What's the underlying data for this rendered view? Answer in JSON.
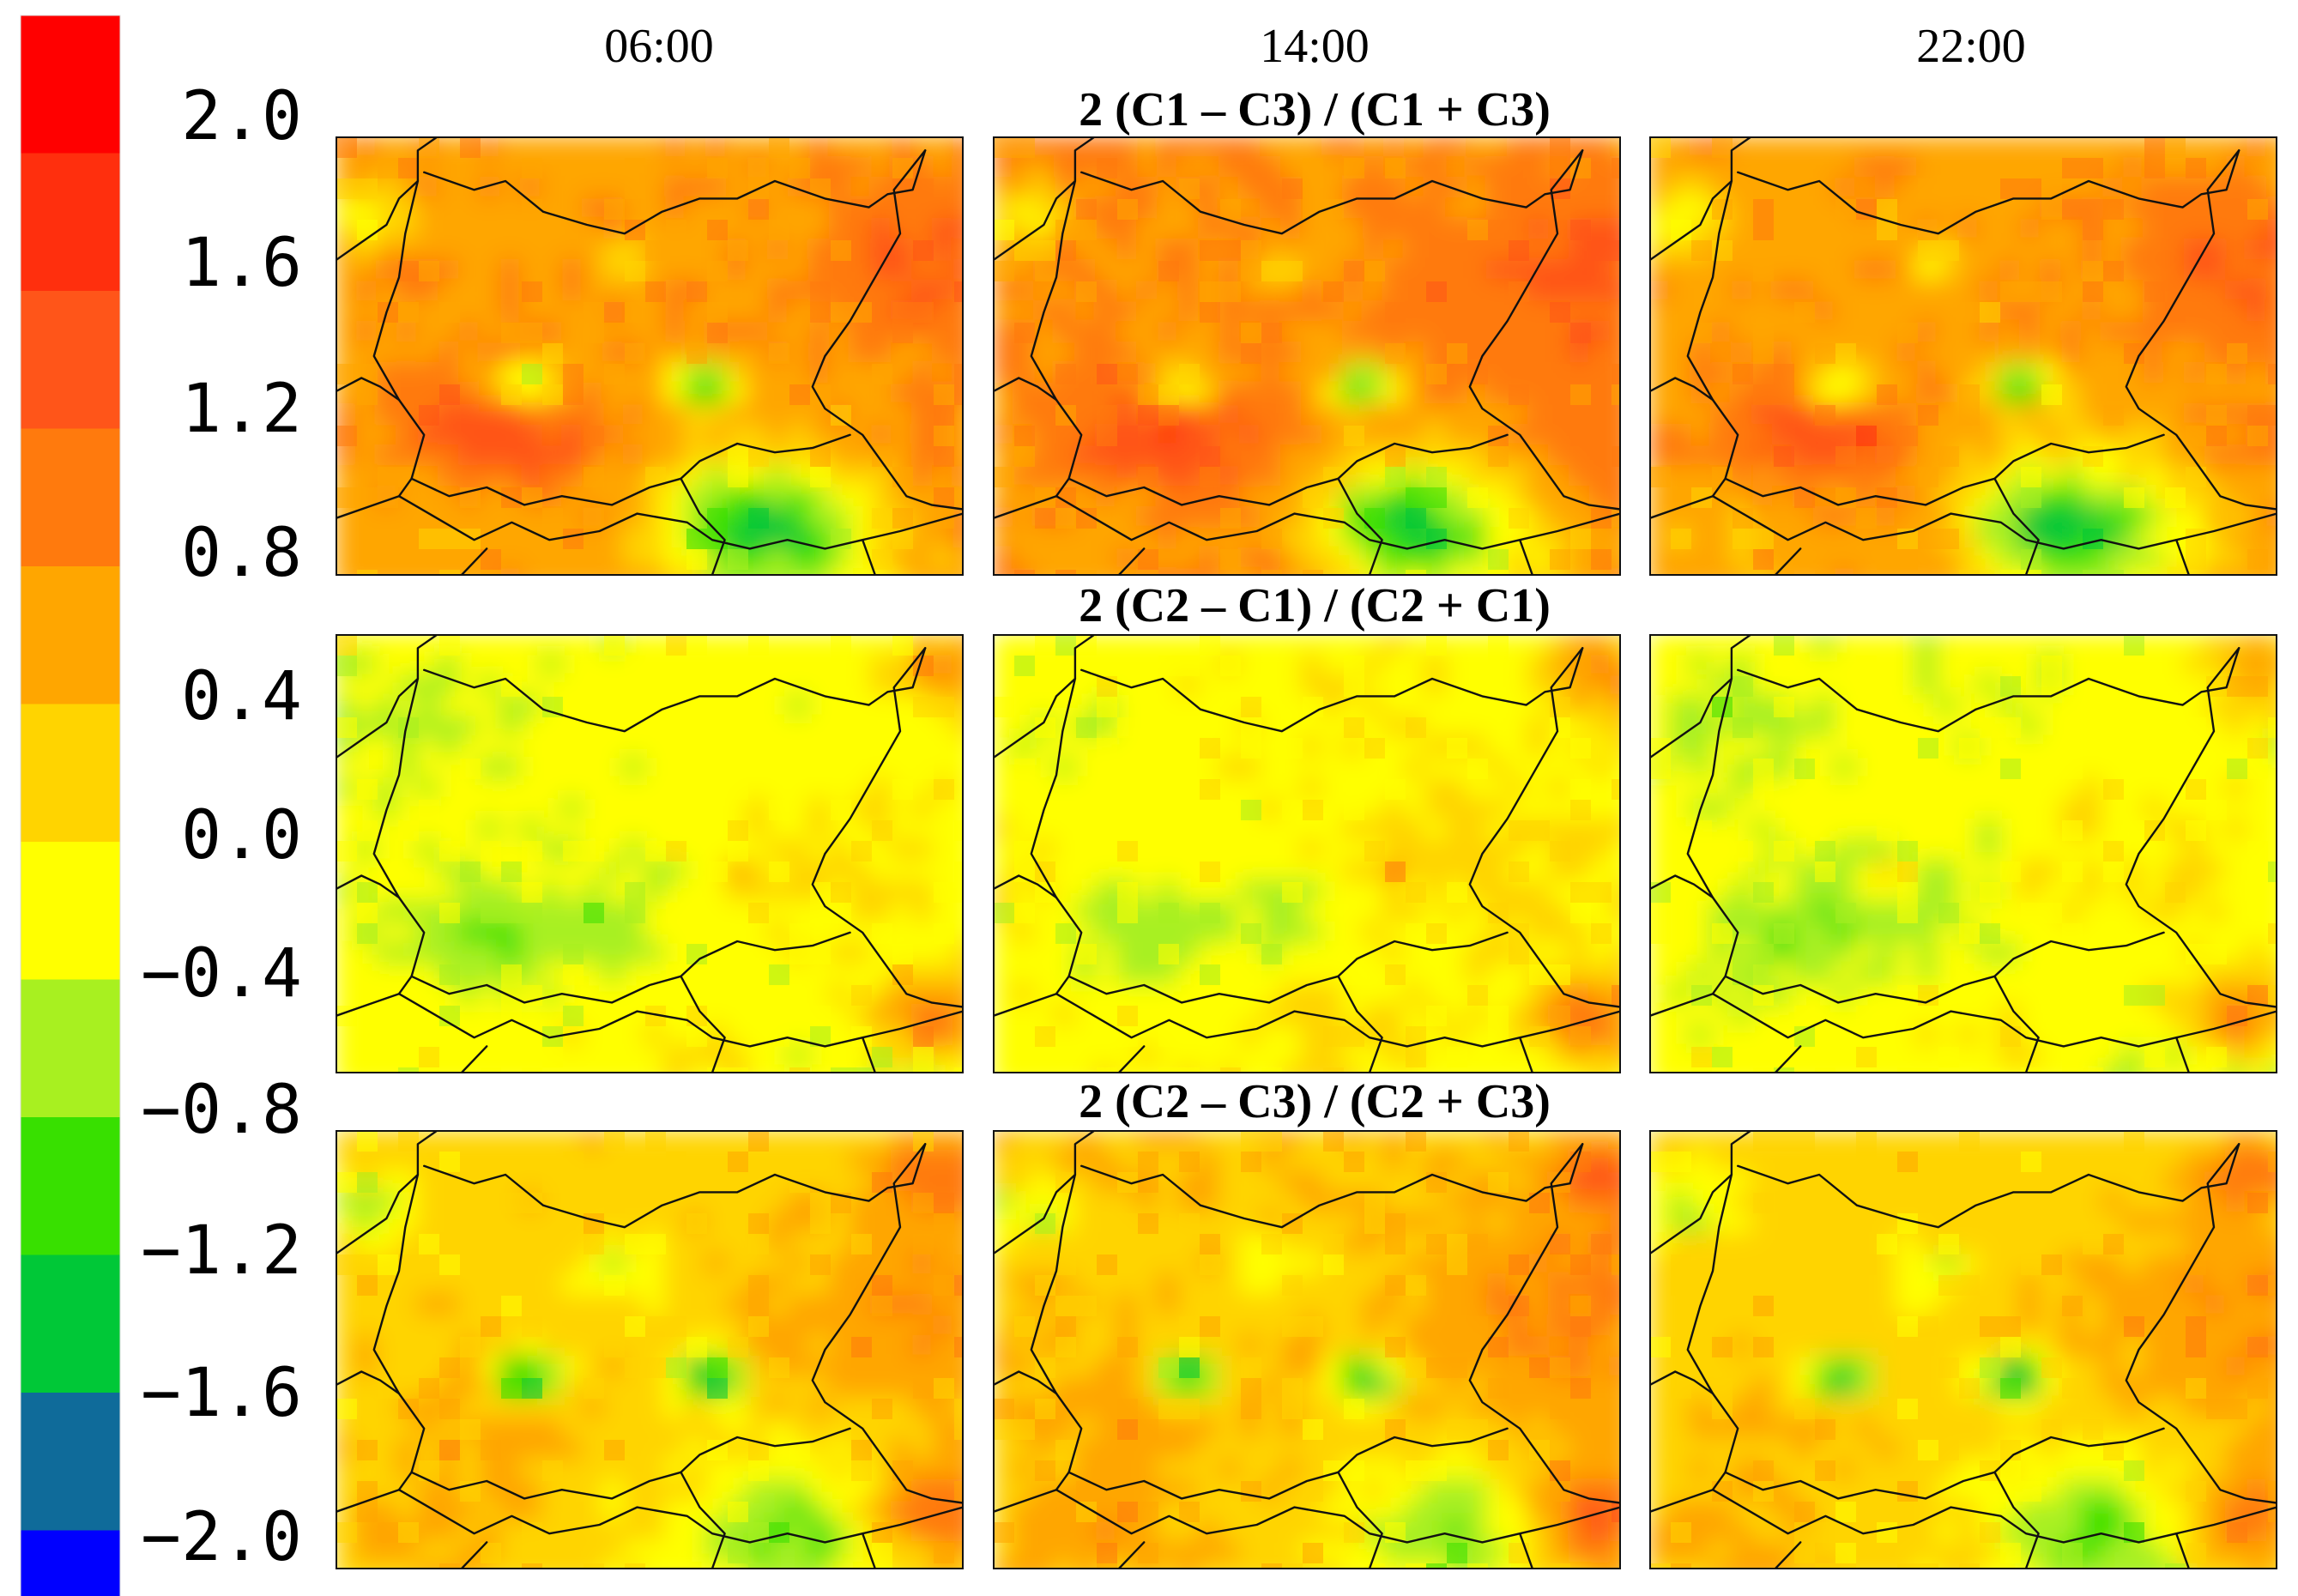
{
  "columns": [
    "06:00",
    "14:00",
    "22:00"
  ],
  "rows": [
    "2 (C1 – C3) / (C1 + C3)",
    "2 (C2 – C1) / (C2 + C1)",
    "2 (C2 – C3) / (C2 + C3)"
  ],
  "colorbar": {
    "bands": [
      "#ff0000",
      "#ff2f0d",
      "#ff5519",
      "#ff7a0d",
      "#ffa600",
      "#ffd400",
      "#ffff00",
      "#a8f020",
      "#38e000",
      "#00c837",
      "#0f6b9a",
      "#0000ff"
    ],
    "labels": [
      "2.0",
      "1.6",
      "1.2",
      "0.8",
      "0.4",
      "0.0",
      "−0.4",
      "−0.8",
      "−1.2",
      "−1.6",
      "−2.0"
    ]
  },
  "legend_icons": [
    "map-panel",
    "colorbar-icon"
  ]
}
